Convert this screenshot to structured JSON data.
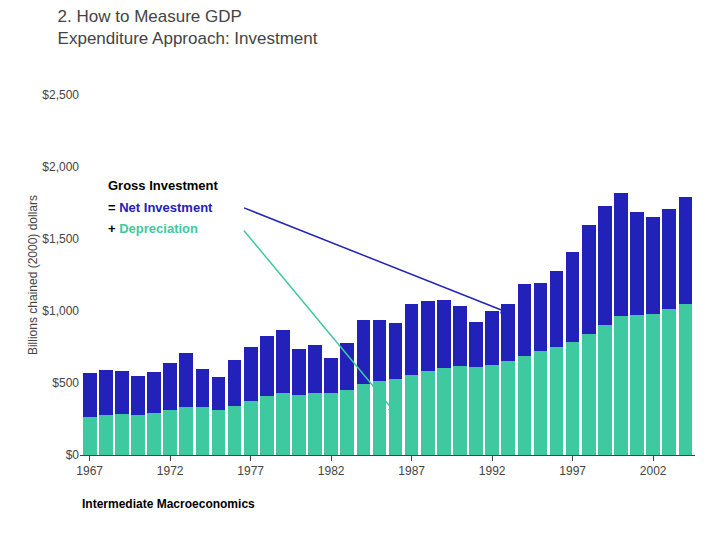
{
  "chart_data": {
    "type": "bar",
    "stacked": true,
    "grid": false,
    "title": "2. How to Measure GDP",
    "subtitle": "Expenditure Approach: Investment",
    "y_label": "Billions chained (2000) dollars",
    "footer": "Intermediate Macroeconomics",
    "annotations": [
      "Gross Investment",
      "= Net Investment",
      "+ Depreciation"
    ],
    "categories": [
      1967,
      null,
      null,
      null,
      null,
      1972,
      null,
      null,
      null,
      null,
      1977,
      null,
      null,
      null,
      null,
      1982,
      null,
      null,
      null,
      null,
      1987,
      null,
      null,
      null,
      null,
      1992,
      null,
      null,
      null,
      null,
      1997,
      null,
      null,
      null,
      null,
      2002,
      null,
      null
    ],
    "series": [
      {
        "name": "Depreciation",
        "color": "#3EC9A0",
        "values": [
          265,
          278,
          285,
          280,
          295,
          312,
          332,
          332,
          310,
          342,
          378,
          412,
          432,
          420,
          432,
          430,
          452,
          492,
          512,
          530,
          558,
          582,
          602,
          620,
          610,
          622,
          652,
          690,
          720,
          750,
          782,
          842,
          902,
          962,
          970,
          980,
          1012,
          1050
        ]
      },
      {
        "name": "Net Investment",
        "color": "#2222BB",
        "values": [
          305,
          312,
          300,
          270,
          280,
          328,
          375,
          265,
          232,
          318,
          375,
          415,
          435,
          315,
          335,
          245,
          325,
          445,
          425,
          385,
          490,
          490,
          475,
          415,
          315,
          375,
          395,
          495,
          475,
          525,
          625,
          755,
          825,
          855,
          715,
          675,
          695,
          745
        ]
      }
    ],
    "ylim": [
      0,
      2500
    ],
    "yticks": [
      {
        "value": 0,
        "label": "$0"
      },
      {
        "value": 500,
        "label": "$500"
      },
      {
        "value": 1000,
        "label": "$1,000"
      },
      {
        "value": 1500,
        "label": "$1,500"
      },
      {
        "value": 2000,
        "label": "$2,000"
      },
      {
        "value": 2500,
        "label": "$2,500"
      }
    ]
  }
}
